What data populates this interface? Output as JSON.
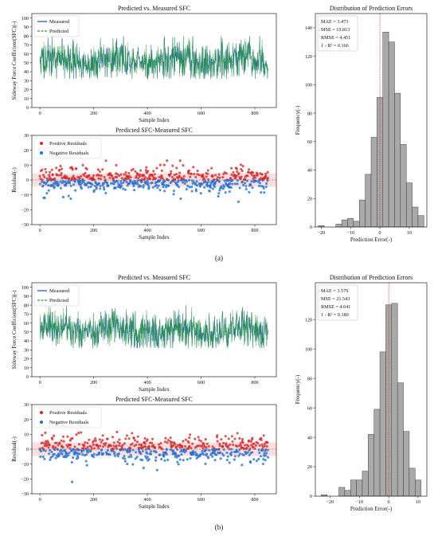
{
  "figure": {
    "label_a": "(a)",
    "label_b": "(b)"
  },
  "chart_data": [
    {
      "id": "a-series",
      "type": "line",
      "title": "Predicted vs. Measured SFC",
      "xlabel": "Sample Index",
      "ylabel": "Sideway Force Coefficient(SFC)(-)",
      "xlim": [
        -30,
        880
      ],
      "ylim": [
        0,
        105
      ],
      "xticks": [
        0,
        200,
        400,
        600,
        800
      ],
      "yticks": [
        0,
        10,
        20,
        30,
        40,
        50,
        60,
        70,
        80,
        90,
        100
      ],
      "legend": "top-left",
      "grid": false,
      "n_points": 850,
      "series": [
        {
          "name": "Measured",
          "color": "#1f5fbf",
          "style": "solid",
          "typical_range": [
            35,
            78
          ]
        },
        {
          "name": "Predicted",
          "color": "#2ca02c",
          "style": "dashed",
          "typical_range": [
            38,
            75
          ]
        }
      ]
    },
    {
      "id": "a-residuals",
      "type": "scatter",
      "title": "Predicted SFC-Measured SFC",
      "xlabel": "Sample Index",
      "ylabel": "Residual(-)",
      "xlim": [
        -30,
        880
      ],
      "ylim": [
        -30,
        30
      ],
      "xticks": [
        0,
        200,
        400,
        600,
        800
      ],
      "yticks": [
        -30,
        -20,
        -10,
        0,
        10,
        20,
        30
      ],
      "legend": "top-left",
      "band": [
        -4.5,
        4.5
      ],
      "series": [
        {
          "name": "Positive Residuals",
          "color": "#d62728",
          "approx_range": [
            0,
            13
          ]
        },
        {
          "name": "Negative Residuals",
          "color": "#1f6fd0",
          "approx_range": [
            -20,
            0
          ]
        }
      ]
    },
    {
      "id": "a-histogram",
      "type": "bar",
      "title": "Distribution of Prediction Errors",
      "xlabel": "Prediction Error(-)",
      "ylabel": "Frequency(-)",
      "xlim": [
        -22,
        16
      ],
      "ylim": [
        0,
        150
      ],
      "xticks": [
        -20,
        -10,
        0,
        10
      ],
      "yticks": [
        0,
        20,
        40,
        60,
        80,
        100,
        120,
        140
      ],
      "bin_edges": [
        -21,
        -19,
        -17,
        -15,
        -13,
        -11,
        -9,
        -7,
        -5,
        -3,
        -1,
        1,
        3,
        5,
        7,
        9,
        11,
        13,
        15
      ],
      "values": [
        1,
        0,
        0,
        2,
        5,
        6,
        4,
        19,
        37,
        63,
        91,
        137,
        130,
        94,
        58,
        31,
        14,
        8,
        3
      ],
      "mean_line": 0,
      "stats": [
        "MAE  = 3.473",
        "MSE  = 19.813",
        "RMSE = 4.451",
        "1 - R² = 0.166"
      ]
    },
    {
      "id": "b-series",
      "type": "line",
      "title": "Predicted vs. Measured SFC",
      "xlabel": "Sample Index",
      "ylabel": "Sideway Force Coefficient(SFC)(-)",
      "xlim": [
        -30,
        880
      ],
      "ylim": [
        0,
        105
      ],
      "xticks": [
        0,
        200,
        400,
        600,
        800
      ],
      "yticks": [
        0,
        10,
        20,
        30,
        40,
        50,
        60,
        70,
        80,
        90,
        100
      ],
      "legend": "top-left",
      "grid": false,
      "n_points": 850,
      "series": [
        {
          "name": "Measured",
          "color": "#1f5fbf",
          "style": "solid",
          "typical_range": [
            35,
            78
          ]
        },
        {
          "name": "Predicted",
          "color": "#2ca02c",
          "style": "dashed",
          "typical_range": [
            38,
            74
          ]
        }
      ]
    },
    {
      "id": "b-residuals",
      "type": "scatter",
      "title": "Predicted SFC-Measured SFC",
      "xlabel": "Sample Index",
      "ylabel": "Residual(-)",
      "xlim": [
        -30,
        880
      ],
      "ylim": [
        -30,
        30
      ],
      "xticks": [
        0,
        200,
        400,
        600,
        800
      ],
      "yticks": [
        -30,
        -20,
        -10,
        0,
        10,
        20,
        30
      ],
      "legend": "top-left",
      "band": [
        -4.6,
        4.6
      ],
      "series": [
        {
          "name": "Positive Residuals",
          "color": "#d62728",
          "approx_range": [
            0,
            11
          ]
        },
        {
          "name": "Negative Residuals",
          "color": "#1f6fd0",
          "approx_range": [
            -23,
            0
          ]
        }
      ]
    },
    {
      "id": "b-histogram",
      "type": "bar",
      "title": "Distribution of Prediction Errors",
      "xlabel": "Prediction Error(-)",
      "ylabel": "Frequency(-)",
      "xlim": [
        -25,
        13
      ],
      "ylim": [
        0,
        145
      ],
      "xticks": [
        -20,
        -10,
        0,
        10
      ],
      "yticks": [
        0,
        20,
        40,
        60,
        80,
        100,
        120
      ],
      "bin_edges": [
        -23,
        -21,
        -19,
        -17,
        -15,
        -13,
        -11,
        -9,
        -7,
        -5,
        -3,
        -1,
        1,
        3,
        5,
        7,
        9,
        11
      ],
      "values": [
        1,
        0,
        0,
        6,
        4,
        11,
        11,
        17,
        42,
        59,
        98,
        130,
        131,
        77,
        44,
        19,
        11,
        5
      ],
      "mean_line": 0,
      "stats": [
        "MAE  = 3.579",
        "MSE  = 21.543",
        "RMSE = 4.641",
        "1 - R² = 0.180"
      ]
    }
  ]
}
